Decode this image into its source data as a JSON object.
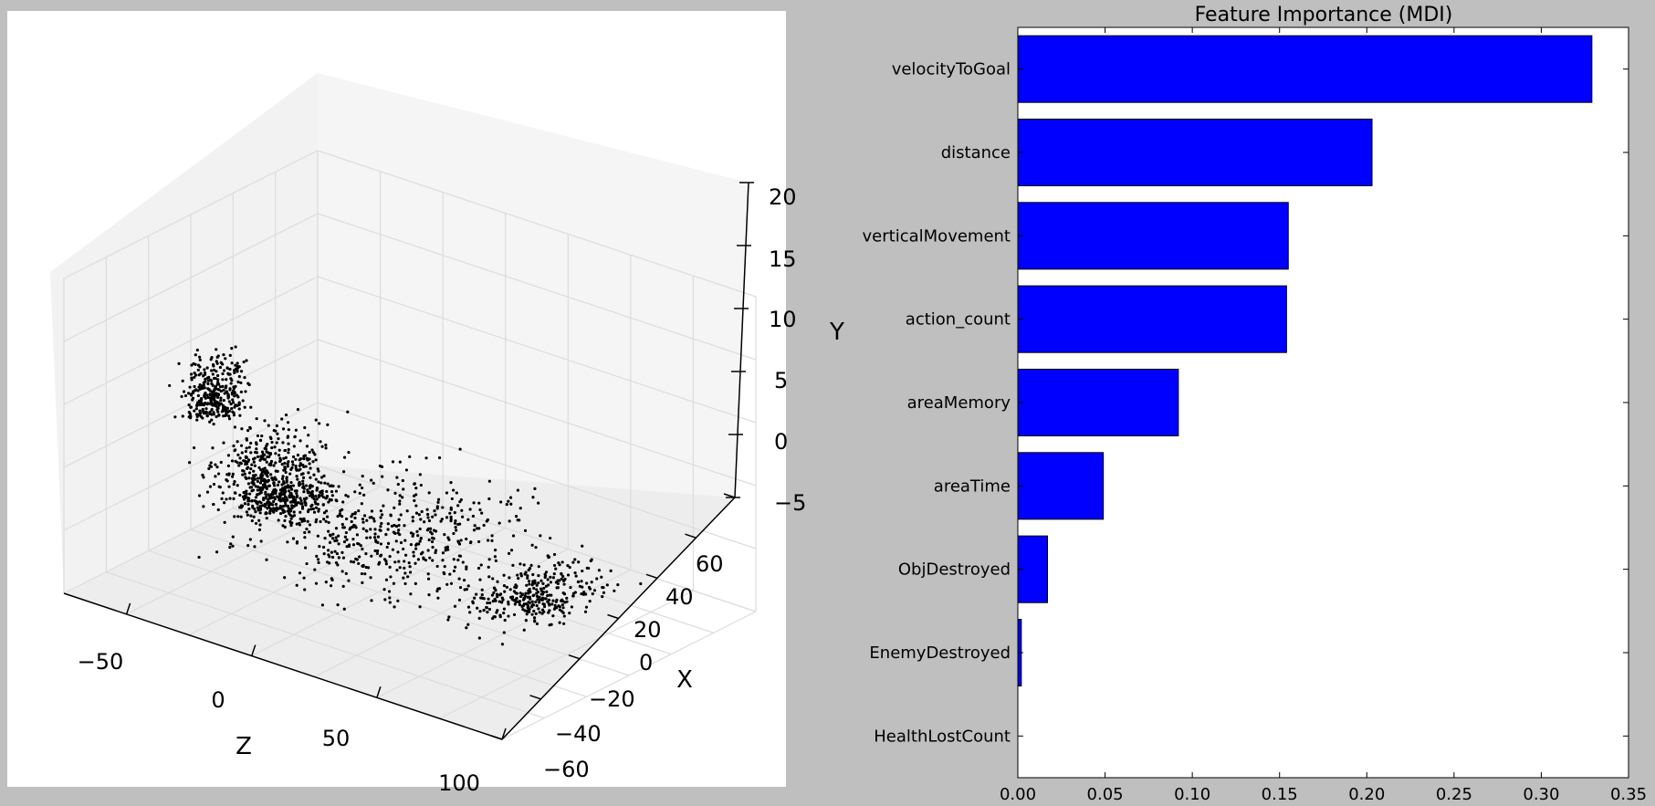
{
  "chart_data": [
    {
      "type": "scatter",
      "projection": "3d",
      "title": "",
      "axes": {
        "x": {
          "label": "X",
          "ticks": [
            "−60",
            "−40",
            "−20",
            "0",
            "20",
            "40",
            "60"
          ]
        },
        "y": {
          "label": "Y",
          "ticks": [
            "−5",
            "0",
            "5",
            "10",
            "15",
            "20"
          ]
        },
        "z": {
          "label": "Z",
          "ticks": [
            "−50",
            "0",
            "50",
            "100"
          ]
        }
      },
      "xlim": [
        -60,
        60
      ],
      "ylim": [
        -5,
        20
      ],
      "zlim": [
        -75,
        100
      ],
      "grid": true,
      "marker_color": "#000000",
      "point_clusters": [
        {
          "z_center": -40,
          "x_center": 30,
          "y_center": 9,
          "spread": [
            6,
            8,
            3
          ]
        },
        {
          "z_center": -35,
          "x_center": 10,
          "y_center": 2,
          "spread": [
            10,
            15,
            3
          ]
        },
        {
          "z_center": -45,
          "x_center": -10,
          "y_center": -2,
          "spread": [
            10,
            12,
            2
          ]
        },
        {
          "z_center": 55,
          "x_center": -10,
          "y_center": -3,
          "spread": [
            12,
            18,
            2
          ]
        },
        {
          "z_center": 15,
          "x_center": 10,
          "y_center": 0,
          "spread": [
            30,
            30,
            4
          ]
        }
      ]
    },
    {
      "type": "bar",
      "orientation": "horizontal",
      "title": "Feature Importance (MDI)",
      "categories": [
        "velocityToGoal",
        "distance",
        "verticalMovement",
        "action_count",
        "areaMemory",
        "areaTime",
        "ObjDestroyed",
        "EnemyDestroyed",
        "HealthLostCount"
      ],
      "values": [
        0.329,
        0.203,
        0.155,
        0.154,
        0.092,
        0.049,
        0.017,
        0.002,
        0.0
      ],
      "xlim": [
        0,
        0.35
      ],
      "xticks": [
        "0.00",
        "0.05",
        "0.10",
        "0.15",
        "0.20",
        "0.25",
        "0.30",
        "0.35"
      ],
      "bar_color": "#0000ff",
      "grid": false
    }
  ]
}
